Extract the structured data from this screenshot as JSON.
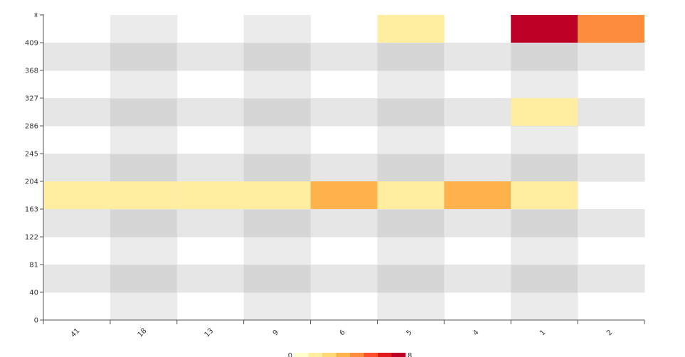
{
  "chart_data": {
    "type": "heatmap",
    "x_categories": [
      "41",
      "18",
      "13",
      "9",
      "6",
      "5",
      "4",
      "1",
      "2"
    ],
    "y_categories": [
      "0",
      "40",
      "81",
      "122",
      "163",
      "204",
      "245",
      "286",
      "327",
      "368",
      "409",
      "∞"
    ],
    "cells": [
      {
        "x": "41",
        "y": "163",
        "value": 1
      },
      {
        "x": "18",
        "y": "163",
        "value": 1
      },
      {
        "x": "13",
        "y": "163",
        "value": 1
      },
      {
        "x": "9",
        "y": "163",
        "value": 1
      },
      {
        "x": "6",
        "y": "163",
        "value": 3
      },
      {
        "x": "5",
        "y": "163",
        "value": 1
      },
      {
        "x": "4",
        "y": "163",
        "value": 3
      },
      {
        "x": "1",
        "y": "163",
        "value": 1
      },
      {
        "x": "5",
        "y": "409",
        "value": 1
      },
      {
        "x": "1",
        "y": "286",
        "value": 1
      },
      {
        "x": "1",
        "y": "409",
        "value": 8
      },
      {
        "x": "2",
        "y": "409",
        "value": 4
      }
    ],
    "color_scale": {
      "min": 0,
      "max": 8,
      "colors": [
        "#ffffcc",
        "#ffeda0",
        "#fed976",
        "#feb24c",
        "#fd8d3c",
        "#fc4e2a",
        "#e31a1c",
        "#bd0026"
      ]
    },
    "legend": {
      "placement": "bottom-center",
      "min_label": "0",
      "max_label": "8"
    },
    "band_colors": {
      "even_row": "#e6e6e6",
      "even_col": "#ebebeb",
      "overlap": "#d6d6d6"
    },
    "grid": false,
    "title": "",
    "xlabel": "",
    "ylabel": ""
  }
}
